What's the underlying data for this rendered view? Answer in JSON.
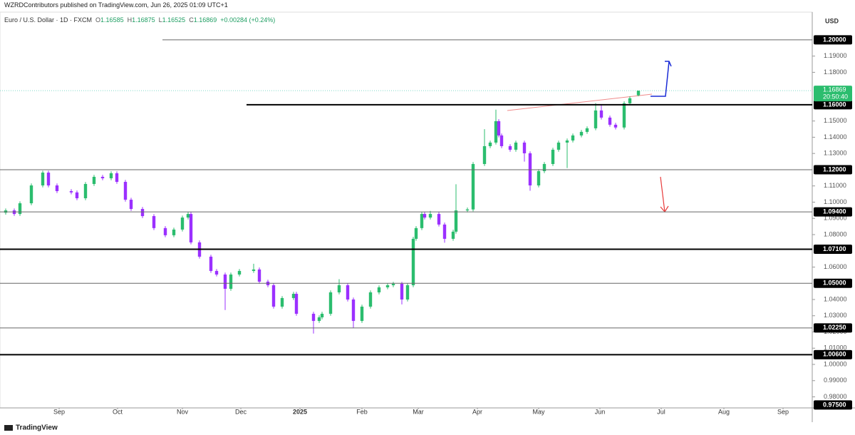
{
  "header": {
    "publisher": "WZRDContributors published on TradingView.com, Jun 26, 2025 01:09 UTC+1",
    "brand": "TradingView"
  },
  "chart_data": {
    "type": "candlestick",
    "title": "Euro / U.S. Dollar · 1D · FXCM",
    "legend": [
      {
        "key": "O",
        "value": "1.16585"
      },
      {
        "key": "H",
        "value": "1.16875"
      },
      {
        "key": "L",
        "value": "1.16525"
      },
      {
        "key": "C",
        "value": "1.16869"
      },
      {
        "key": "",
        "value": "+0.00284 (+0.24%)"
      }
    ],
    "currency": "USD",
    "up_color": "#2bbd6e",
    "down_color": "#9b30ff",
    "grid": false,
    "xlim": [
      -2,
      283
    ],
    "ylim": [
      0.9732,
      1.2171
    ],
    "xticks": [
      {
        "value": 18.75,
        "label": "Sep"
      },
      {
        "value": 39.25,
        "label": "Oct"
      },
      {
        "value": 62,
        "label": "Nov"
      },
      {
        "value": 82.5,
        "label": "Dec"
      },
      {
        "value": 103.25,
        "label": "2025"
      },
      {
        "value": 125,
        "label": "Feb"
      },
      {
        "value": 144.75,
        "label": "Mar"
      },
      {
        "value": 165.5,
        "label": "Apr"
      },
      {
        "value": 187,
        "label": "May"
      },
      {
        "value": 208.5,
        "label": "Jun"
      },
      {
        "value": 230,
        "label": "Jul"
      },
      {
        "value": 252,
        "label": "Aug"
      },
      {
        "value": 272.75,
        "label": "Sep"
      }
    ],
    "yticks": [
      {
        "value": 1.19,
        "label": "1.19000"
      },
      {
        "value": 1.18,
        "label": "1.18000"
      },
      {
        "value": 1.15,
        "label": "1.15000"
      },
      {
        "value": 1.14,
        "label": "1.14000"
      },
      {
        "value": 1.13,
        "label": "1.13000"
      },
      {
        "value": 1.11,
        "label": "1.11000"
      },
      {
        "value": 1.1,
        "label": "1.10000"
      },
      {
        "value": 1.09,
        "label": "1.09000"
      },
      {
        "value": 1.08,
        "label": "1.08000"
      },
      {
        "value": 1.06,
        "label": "1.06000"
      },
      {
        "value": 1.04,
        "label": "1.04000"
      },
      {
        "value": 1.03,
        "label": "1.03000"
      },
      {
        "value": 1.02,
        "label": "1.02000"
      },
      {
        "value": 1.01,
        "label": "1.01000"
      },
      {
        "value": 1.0,
        "label": "1.00000"
      },
      {
        "value": 0.99,
        "label": "0.99000"
      },
      {
        "value": 0.98,
        "label": "0.98000"
      }
    ],
    "levels": [
      {
        "value": 1.2,
        "label": "1.20000",
        "from": 55,
        "style": "thin"
      },
      {
        "value": 1.16,
        "label": "1.16000",
        "from": 84.5,
        "style": "bold"
      },
      {
        "value": 1.12,
        "label": "1.12000",
        "from": -2,
        "style": "thin"
      },
      {
        "value": 1.094,
        "label": "1.09400",
        "from": -2,
        "style": "thin"
      },
      {
        "value": 1.071,
        "label": "1.07100",
        "from": -2,
        "style": "bold"
      },
      {
        "value": 1.05,
        "label": "1.05000",
        "from": -2,
        "style": "thin"
      },
      {
        "value": 1.0225,
        "label": "1.02250",
        "from": -2,
        "style": "thin"
      },
      {
        "value": 1.006,
        "label": "1.00600",
        "from": -2,
        "style": "bold"
      },
      {
        "value": 0.975,
        "label": "0.97500",
        "from": -2,
        "style": "none"
      }
    ],
    "last_price": {
      "value": 1.16869,
      "label": "1.16869",
      "countdown": "20:50:40"
    },
    "candles": {
      "x": [
        0,
        3,
        5,
        9,
        13,
        15,
        18,
        23,
        25,
        28,
        31,
        34,
        37,
        39,
        42,
        44,
        48,
        52,
        56,
        59,
        62,
        64,
        65,
        68,
        72,
        74,
        77,
        79,
        82,
        87,
        89,
        92,
        94,
        97,
        101,
        102,
        108,
        110,
        111,
        114,
        117,
        120,
        122,
        125,
        128,
        131,
        134,
        136,
        139,
        141,
        143,
        144,
        146,
        147,
        149,
        152,
        154,
        157,
        158,
        162,
        164,
        168,
        170,
        172,
        173,
        174,
        177,
        179,
        182,
        184,
        187,
        189,
        192,
        194,
        197,
        199,
        202,
        204,
        207,
        209,
        212,
        214,
        217,
        219,
        222
      ],
      "open": [
        1.0935,
        1.0949,
        1.0927,
        1.0993,
        1.1103,
        1.1182,
        1.1103,
        1.1068,
        1.106,
        1.1024,
        1.1112,
        1.1156,
        1.1147,
        1.1178,
        1.1125,
        1.1015,
        1.0958,
        1.0914,
        1.084,
        1.0796,
        1.0831,
        1.0905,
        1.0927,
        1.0752,
        1.0664,
        1.0576,
        1.0554,
        1.0466,
        1.0554,
        1.0576,
        1.0585,
        1.051,
        1.0488,
        1.0356,
        1.0409,
        1.0435,
        1.0312,
        1.0268,
        1.029,
        1.0312,
        1.0444,
        1.0488,
        1.04,
        1.0268,
        1.0356,
        1.0444,
        1.0475,
        1.0488,
        1.0497,
        1.04,
        1.0488,
        1.0774,
        1.084,
        1.0927,
        1.0905,
        1.0927,
        1.0862,
        1.0774,
        1.0818,
        1.0949,
        1.0955,
        1.1235,
        1.1345,
        1.1367,
        1.1499,
        1.1411,
        1.1345,
        1.1323,
        1.1367,
        1.1301,
        1.1103,
        1.1191,
        1.1235,
        1.1323,
        1.1367,
        1.138,
        1.1411,
        1.1433,
        1.1455,
        1.1565,
        1.1521,
        1.1477,
        1.146,
        1.1609,
        1.16585
      ],
      "high": [
        1.0961,
        1.0961,
        1.1005,
        1.1115,
        1.1194,
        1.1194,
        1.1115,
        1.108,
        1.1072,
        1.1124,
        1.1168,
        1.1168,
        1.119,
        1.119,
        1.1137,
        1.1027,
        1.097,
        1.0926,
        1.0852,
        1.0843,
        1.0917,
        1.0939,
        1.0939,
        1.0764,
        1.0676,
        1.0588,
        1.0566,
        1.0566,
        1.0588,
        1.062,
        1.0597,
        1.0522,
        1.05,
        1.0421,
        1.0447,
        1.0447,
        1.0324,
        1.0302,
        1.0324,
        1.0456,
        1.0525,
        1.05,
        1.0412,
        1.0368,
        1.0456,
        1.0487,
        1.05,
        1.0509,
        1.0509,
        1.05,
        1.0786,
        1.0852,
        1.0939,
        1.0939,
        1.0946,
        1.0939,
        1.0874,
        1.083,
        1.111,
        1.0967,
        1.1247,
        1.145,
        1.1379,
        1.157,
        1.1511,
        1.1423,
        1.1357,
        1.1379,
        1.1379,
        1.1313,
        1.1203,
        1.1247,
        1.1335,
        1.1379,
        1.1392,
        1.1423,
        1.1445,
        1.1467,
        1.161,
        1.16,
        1.1533,
        1.1489,
        1.1621,
        1.1652,
        1.16875
      ],
      "low": [
        1.0923,
        1.0915,
        1.0915,
        1.0981,
        1.1091,
        1.1091,
        1.1056,
        1.1048,
        1.1012,
        1.1012,
        1.11,
        1.1135,
        1.1135,
        1.1113,
        1.1003,
        1.0946,
        1.0902,
        1.0828,
        1.0784,
        1.0784,
        1.0819,
        1.0893,
        1.074,
        1.0652,
        1.0564,
        1.0542,
        1.0335,
        1.0454,
        1.0542,
        1.0564,
        1.0498,
        1.0476,
        1.0344,
        1.0344,
        1.0397,
        1.03,
        1.019,
        1.0256,
        1.0278,
        1.03,
        1.0432,
        1.0388,
        1.0225,
        1.0256,
        1.0344,
        1.0432,
        1.0463,
        1.0476,
        1.037,
        1.0388,
        1.0476,
        1.0762,
        1.0828,
        1.0893,
        1.0893,
        1.085,
        1.075,
        1.0762,
        1.0806,
        1.0937,
        1.0943,
        1.1223,
        1.1333,
        1.1355,
        1.1399,
        1.1333,
        1.1311,
        1.1311,
        1.125,
        1.107,
        1.1091,
        1.1179,
        1.1223,
        1.1311,
        1.121,
        1.1368,
        1.1399,
        1.1421,
        1.1443,
        1.1509,
        1.1465,
        1.1448,
        1.1448,
        1.1597,
        1.16525
      ],
      "close": [
        1.0949,
        1.0927,
        1.0993,
        1.1103,
        1.1182,
        1.1103,
        1.1068,
        1.106,
        1.1024,
        1.1112,
        1.1156,
        1.1147,
        1.1178,
        1.1125,
        1.1015,
        1.0958,
        1.0914,
        1.084,
        1.0796,
        1.0831,
        1.0905,
        1.0927,
        1.0752,
        1.0664,
        1.0576,
        1.0554,
        1.0466,
        1.0554,
        1.0576,
        1.0585,
        1.051,
        1.0488,
        1.0356,
        1.0409,
        1.0435,
        1.0312,
        1.0268,
        1.029,
        1.0312,
        1.0444,
        1.0488,
        1.04,
        1.0268,
        1.0356,
        1.0444,
        1.0475,
        1.0488,
        1.0497,
        1.04,
        1.0488,
        1.0774,
        1.084,
        1.0927,
        1.0905,
        1.0927,
        1.0862,
        1.0774,
        1.0818,
        1.0949,
        1.0955,
        1.1235,
        1.1345,
        1.1367,
        1.1499,
        1.1411,
        1.1345,
        1.1323,
        1.1367,
        1.1301,
        1.1103,
        1.1191,
        1.1235,
        1.1323,
        1.1367,
        1.138,
        1.1411,
        1.1433,
        1.1455,
        1.1565,
        1.1521,
        1.1477,
        1.146,
        1.1609,
        1.164,
        1.16869
      ]
    }
  }
}
